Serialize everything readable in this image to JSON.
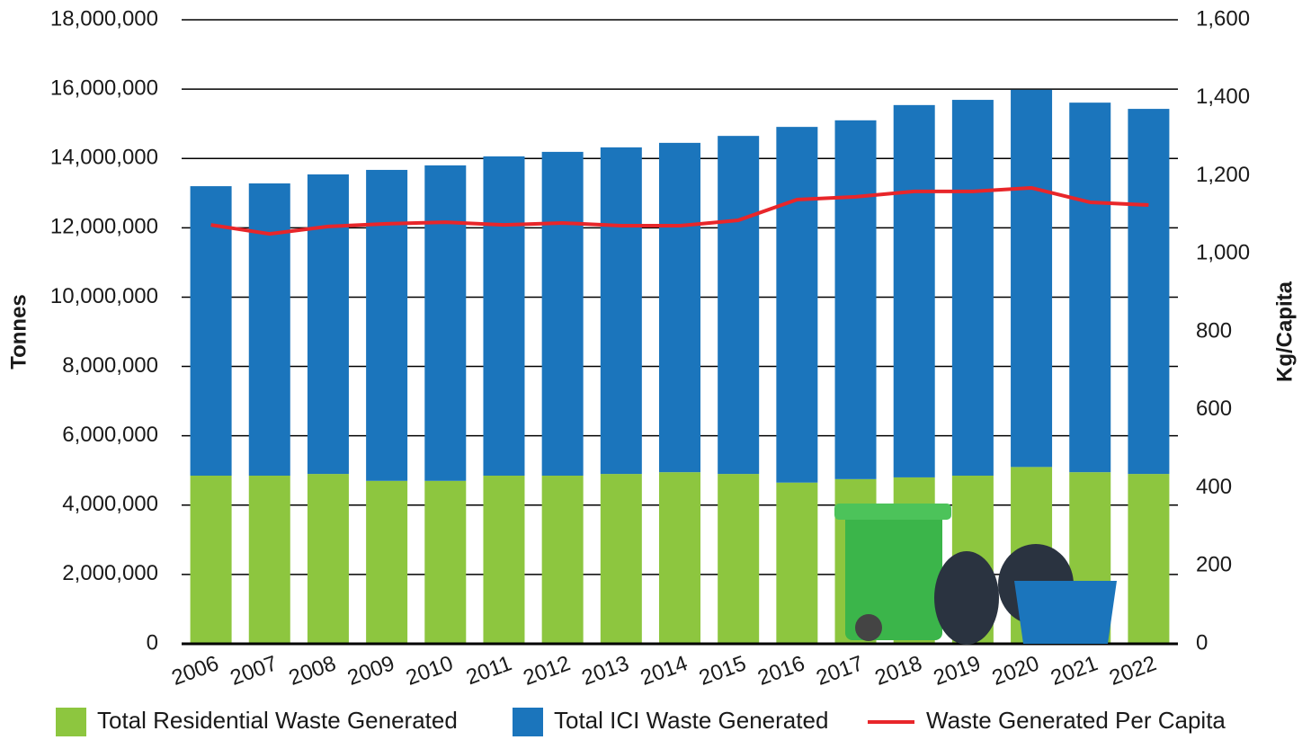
{
  "chart_data": {
    "type": "bar",
    "categories": [
      "2006",
      "2007",
      "2008",
      "2009",
      "2010",
      "2011",
      "2012",
      "2013",
      "2014",
      "2015",
      "2016",
      "2017",
      "2018",
      "2019",
      "2020",
      "2021",
      "2022"
    ],
    "y_axis_label": "Tonnes",
    "y2_axis_label": "Kg/Capita",
    "stacked": true,
    "grid": true,
    "legend": "bottom",
    "series": [
      {
        "name": "Total Residential Waste Generated",
        "color": "#8dc63f",
        "type": "bar",
        "values": [
          4850000,
          4850000,
          4900000,
          4700000,
          4700000,
          4850000,
          4850000,
          4900000,
          4950000,
          4900000,
          4650000,
          4750000,
          4800000,
          4850000,
          5100000,
          4950000,
          4900000
        ]
      },
      {
        "name": "Total ICI Waste Generated",
        "color": "#1b75bc",
        "type": "bar",
        "values": [
          8350000,
          8430000,
          8640000,
          8970000,
          9100000,
          9210000,
          9340000,
          9420000,
          9500000,
          9750000,
          10260000,
          10350000,
          10740000,
          10840000,
          10880000,
          10660000,
          10530000
        ]
      },
      {
        "name": "Waste Generated Per Capita",
        "color": "#e8262a",
        "type": "line",
        "axis": "y2",
        "values": [
          1074,
          1051,
          1070,
          1077,
          1081,
          1074,
          1079,
          1072,
          1072,
          1086,
          1139,
          1146,
          1160,
          1160,
          1169,
          1132,
          1125
        ]
      }
    ],
    "ylim": [
      0,
      18000000
    ],
    "yticks": [
      0,
      {
        "value": 2000000,
        "label": "2,000,000"
      },
      {
        "value": 4000000,
        "label": "4,000,000"
      },
      {
        "value": 6000000,
        "label": "6,000,000"
      },
      {
        "value": 8000000,
        "label": "8,000,000"
      },
      {
        "value": 10000000,
        "label": "10,000,000"
      },
      {
        "value": 12000000,
        "label": "12,000,000"
      },
      {
        "value": 14000000,
        "label": "14,000,000"
      },
      {
        "value": 16000000,
        "label": "16,000,000"
      },
      {
        "value": 18000000,
        "label": "18,000,000"
      }
    ],
    "y2lim": [
      0,
      1600
    ],
    "y2ticks": [
      0,
      200,
      400,
      600,
      800,
      {
        "value": 1000,
        "label": "1,000"
      },
      {
        "value": 1200,
        "label": "1,200"
      },
      {
        "value": 1400,
        "label": "1,400"
      },
      {
        "value": 1600,
        "label": "1,600"
      }
    ]
  }
}
